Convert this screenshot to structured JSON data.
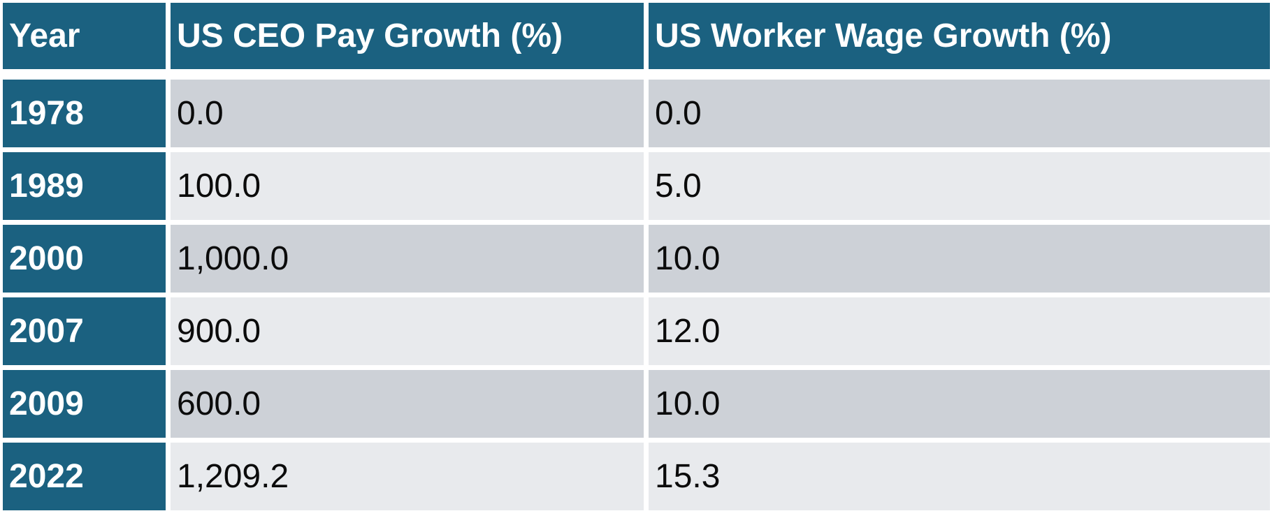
{
  "table": {
    "columns": [
      {
        "key": "year",
        "label": "Year"
      },
      {
        "key": "ceo",
        "label": "US CEO Pay Growth (%)"
      },
      {
        "key": "worker",
        "label": "US Worker Wage Growth (%)"
      }
    ],
    "rows": [
      {
        "year": "1978",
        "ceo": "0.0",
        "worker": "0.0"
      },
      {
        "year": "1989",
        "ceo": "100.0",
        "worker": "5.0"
      },
      {
        "year": "2000",
        "ceo": "1,000.0",
        "worker": "10.0"
      },
      {
        "year": "2007",
        "ceo": "900.0",
        "worker": "12.0"
      },
      {
        "year": "2009",
        "ceo": "600.0",
        "worker": "10.0"
      },
      {
        "year": "2022",
        "ceo": "1,209.2",
        "worker": "15.3"
      }
    ]
  },
  "colors": {
    "accent": "#1B6180",
    "row-dark": "#CDD1D7",
    "row-light": "#E8EAED",
    "header-text": "#FFFFFF",
    "value-text": "#0B0B0B"
  },
  "chart_data": {
    "type": "table",
    "title": "",
    "columns": [
      "Year",
      "US CEO Pay Growth (%)",
      "US Worker Wage Growth (%)"
    ],
    "rows": [
      [
        1978,
        0.0,
        0.0
      ],
      [
        1989,
        100.0,
        5.0
      ],
      [
        2000,
        1000.0,
        10.0
      ],
      [
        2007,
        900.0,
        12.0
      ],
      [
        2009,
        600.0,
        10.0
      ],
      [
        2022,
        1209.2,
        15.3
      ]
    ],
    "layout": "banded rows, accent header row and first column, white cell gaps"
  }
}
